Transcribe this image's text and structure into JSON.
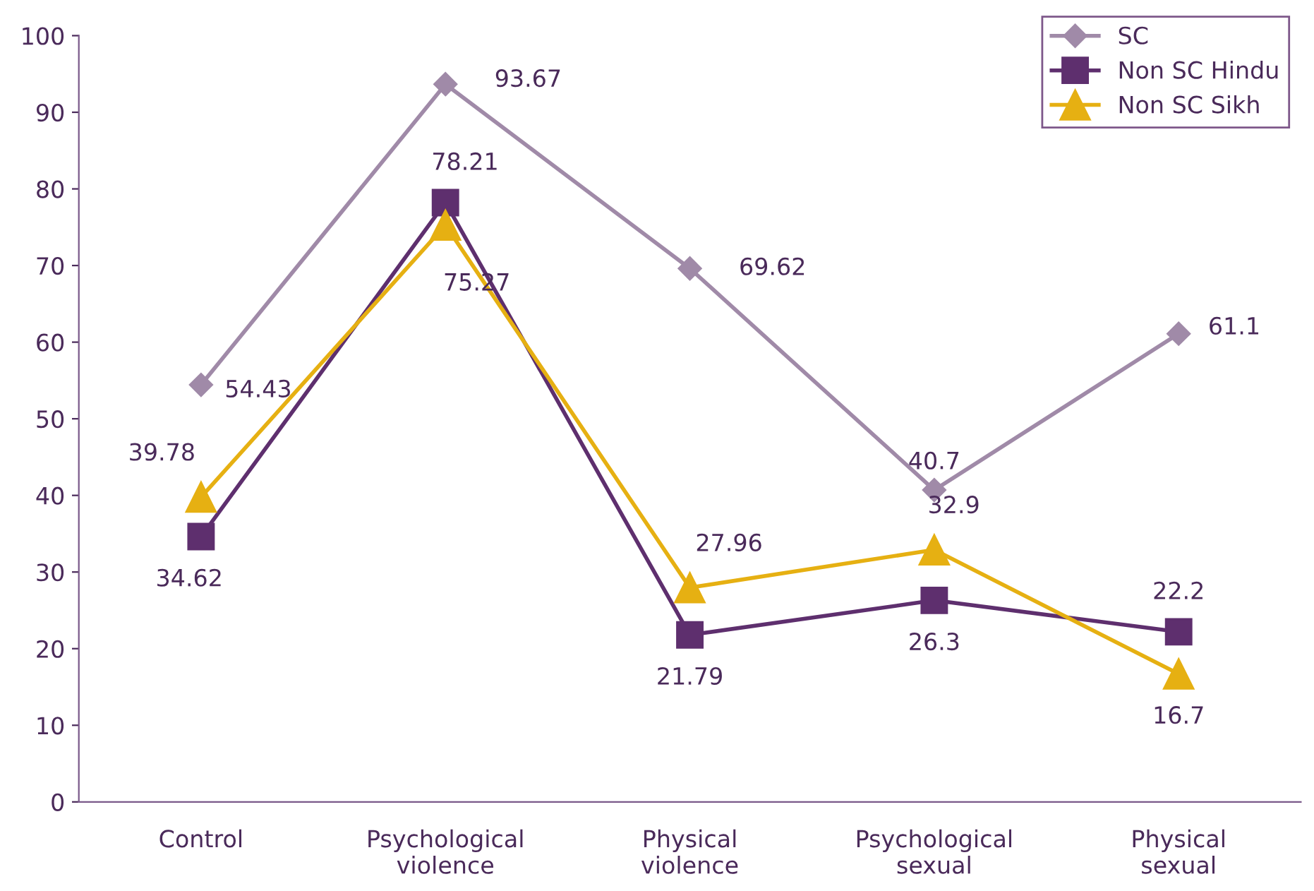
{
  "chart_data": {
    "type": "line",
    "categories": [
      "Control",
      "Psychological\nviolence",
      "Physical\nviolence",
      "Psychological\nsexual",
      "Physical\nsexual"
    ],
    "series": [
      {
        "name": "SC",
        "color": "#a08aa8",
        "marker": "diamond",
        "values": [
          54.43,
          93.67,
          69.62,
          40.7,
          61.1
        ]
      },
      {
        "name": "Non SC Hindu",
        "color": "#5e2f6e",
        "marker": "square",
        "values": [
          34.62,
          78.21,
          21.79,
          26.3,
          22.2
        ]
      },
      {
        "name": "Non SC Sikh",
        "color": "#e6b012",
        "marker": "triangle",
        "values": [
          39.78,
          75.27,
          27.96,
          32.9,
          16.7
        ]
      }
    ],
    "ylim": [
      0,
      100
    ],
    "yticks": [
      0,
      10,
      20,
      30,
      40,
      50,
      60,
      70,
      80,
      90,
      100
    ],
    "data_labels": true,
    "grid": false,
    "legend": "top right",
    "line_style": "solid"
  }
}
